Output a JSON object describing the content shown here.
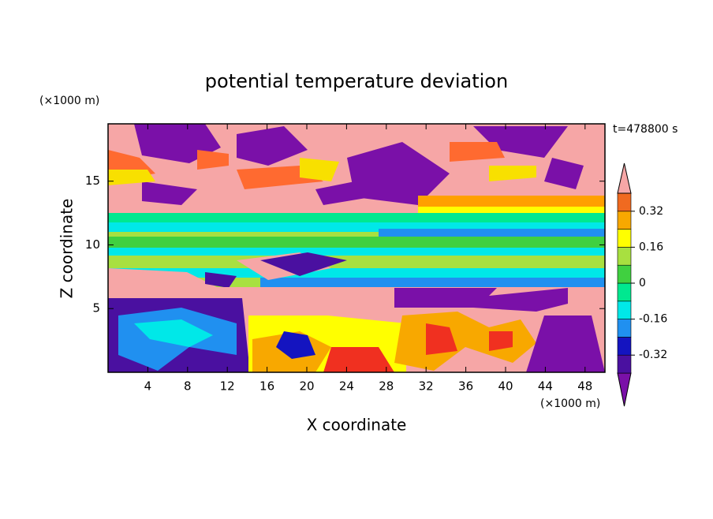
{
  "chart_data": {
    "type": "contour",
    "title": "potential temperature deviation",
    "xlabel": "X coordinate",
    "ylabel": "Z coordinate",
    "x_unit": "(×1000 m)",
    "y_unit": "(×1000 m)",
    "annotation": "t=478800 s",
    "xlim": [
      0,
      50
    ],
    "xticks": [
      4,
      8,
      12,
      16,
      20,
      24,
      28,
      32,
      36,
      40,
      44,
      48
    ],
    "ylim": [
      0,
      19.5
    ],
    "yticks": [
      5,
      10,
      15
    ],
    "levels": [
      -0.4,
      -0.32,
      -0.24,
      -0.16,
      -0.08,
      0,
      0.08,
      0.16,
      0.24,
      0.32,
      0.4
    ],
    "colors": [
      "#7a10a8",
      "#4a10a0",
      "#1414c0",
      "#2090f0",
      "#00e8e8",
      "#00e890",
      "#40d040",
      "#a8e040",
      "#ffff00",
      "#f8a800",
      "#f06a20",
      "#f03020",
      "#f6a6a6"
    ],
    "colorbar_ticks": [
      -0.32,
      -0.16,
      0,
      0.16,
      0.32
    ]
  }
}
